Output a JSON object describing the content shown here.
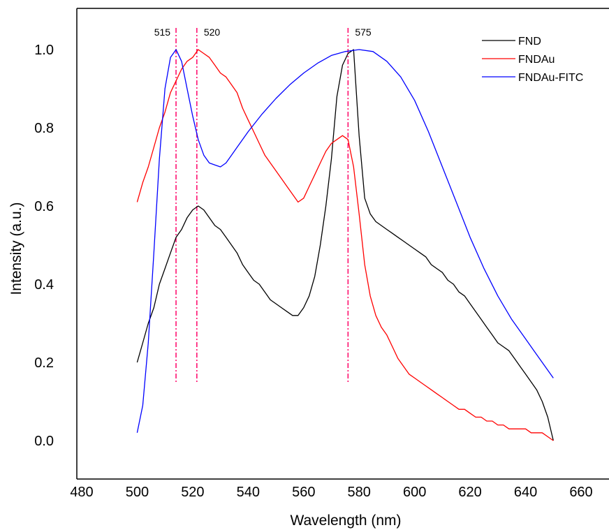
{
  "chart_data": {
    "type": "line",
    "title": "",
    "xlabel": "Wavelength (nm)",
    "ylabel": "Intensity (a.u.)",
    "xlim": [
      480,
      665
    ],
    "ylim": [
      -0.1,
      1.1
    ],
    "xticks": [
      480,
      500,
      520,
      540,
      560,
      580,
      600,
      620,
      640,
      660
    ],
    "yticks": [
      0.0,
      0.2,
      0.4,
      0.6,
      0.8,
      1.0
    ],
    "ytick_labels": [
      "0.0",
      "0.2",
      "0.4",
      "0.6",
      "0.8",
      "1.0"
    ],
    "grid": false,
    "legend_position": "top-right",
    "series": [
      {
        "name": "FND",
        "color": "#000000",
        "x": [
          500,
          502,
          504,
          506,
          508,
          510,
          512,
          514,
          516,
          518,
          520,
          522,
          524,
          526,
          528,
          530,
          532,
          534,
          536,
          538,
          540,
          542,
          544,
          546,
          548,
          550,
          552,
          554,
          556,
          558,
          560,
          562,
          564,
          566,
          568,
          570,
          572,
          574,
          576,
          578,
          580,
          582,
          584,
          586,
          588,
          590,
          592,
          594,
          596,
          598,
          600,
          602,
          604,
          606,
          608,
          610,
          612,
          614,
          616,
          618,
          620,
          622,
          624,
          626,
          628,
          630,
          632,
          634,
          636,
          638,
          640,
          642,
          644,
          646,
          648,
          650
        ],
        "y": [
          0.2,
          0.25,
          0.3,
          0.34,
          0.4,
          0.44,
          0.48,
          0.52,
          0.54,
          0.57,
          0.59,
          0.6,
          0.59,
          0.57,
          0.55,
          0.54,
          0.52,
          0.5,
          0.48,
          0.45,
          0.43,
          0.41,
          0.4,
          0.38,
          0.36,
          0.35,
          0.34,
          0.33,
          0.32,
          0.32,
          0.34,
          0.37,
          0.42,
          0.5,
          0.6,
          0.72,
          0.88,
          0.96,
          0.99,
          1.0,
          0.78,
          0.62,
          0.58,
          0.56,
          0.55,
          0.54,
          0.53,
          0.52,
          0.51,
          0.5,
          0.49,
          0.48,
          0.47,
          0.45,
          0.44,
          0.43,
          0.41,
          0.4,
          0.38,
          0.37,
          0.35,
          0.33,
          0.31,
          0.29,
          0.27,
          0.25,
          0.24,
          0.23,
          0.21,
          0.19,
          0.17,
          0.15,
          0.13,
          0.1,
          0.06,
          0.0
        ]
      },
      {
        "name": "FNDAu",
        "color": "#ff0000",
        "x": [
          500,
          502,
          504,
          506,
          508,
          510,
          512,
          514,
          516,
          518,
          520,
          522,
          524,
          526,
          528,
          530,
          532,
          534,
          536,
          538,
          540,
          542,
          544,
          546,
          548,
          550,
          552,
          554,
          556,
          558,
          560,
          562,
          564,
          566,
          568,
          570,
          572,
          574,
          576,
          578,
          580,
          582,
          584,
          586,
          588,
          590,
          592,
          594,
          596,
          598,
          600,
          602,
          604,
          606,
          608,
          610,
          612,
          614,
          616,
          618,
          620,
          622,
          624,
          626,
          628,
          630,
          632,
          634,
          636,
          638,
          640,
          642,
          644,
          646,
          648,
          650
        ],
        "y": [
          0.61,
          0.66,
          0.7,
          0.75,
          0.8,
          0.84,
          0.89,
          0.92,
          0.95,
          0.97,
          0.98,
          1.0,
          0.99,
          0.98,
          0.96,
          0.94,
          0.93,
          0.91,
          0.89,
          0.85,
          0.82,
          0.79,
          0.76,
          0.73,
          0.71,
          0.69,
          0.67,
          0.65,
          0.63,
          0.61,
          0.62,
          0.65,
          0.68,
          0.71,
          0.74,
          0.76,
          0.77,
          0.78,
          0.77,
          0.7,
          0.58,
          0.45,
          0.37,
          0.32,
          0.29,
          0.27,
          0.24,
          0.21,
          0.19,
          0.17,
          0.16,
          0.15,
          0.14,
          0.13,
          0.12,
          0.11,
          0.1,
          0.09,
          0.08,
          0.08,
          0.07,
          0.06,
          0.06,
          0.05,
          0.05,
          0.04,
          0.04,
          0.03,
          0.03,
          0.03,
          0.03,
          0.02,
          0.02,
          0.02,
          0.01,
          0.0
        ]
      },
      {
        "name": "FNDAu-FITC",
        "color": "#0000ff",
        "x": [
          500,
          502,
          504,
          506,
          508,
          510,
          512,
          514,
          516,
          518,
          520,
          522,
          524,
          526,
          528,
          530,
          532,
          534,
          536,
          538,
          540,
          545,
          550,
          555,
          560,
          565,
          570,
          575,
          580,
          585,
          590,
          595,
          600,
          605,
          610,
          615,
          620,
          625,
          630,
          635,
          640,
          645,
          650
        ],
        "y": [
          0.02,
          0.09,
          0.25,
          0.48,
          0.72,
          0.9,
          0.98,
          1.0,
          0.97,
          0.9,
          0.83,
          0.77,
          0.73,
          0.71,
          0.705,
          0.7,
          0.71,
          0.73,
          0.75,
          0.77,
          0.79,
          0.835,
          0.875,
          0.91,
          0.94,
          0.965,
          0.985,
          0.995,
          1.0,
          0.995,
          0.97,
          0.93,
          0.87,
          0.79,
          0.7,
          0.61,
          0.52,
          0.44,
          0.37,
          0.31,
          0.26,
          0.21,
          0.16
        ]
      }
    ],
    "reference_lines": [
      {
        "label": "515",
        "x": 514,
        "color": "#ff0066"
      },
      {
        "label": "520",
        "x": 521.5,
        "color": "#ff0066"
      },
      {
        "label": "575",
        "x": 576,
        "color": "#ff0066"
      }
    ]
  }
}
